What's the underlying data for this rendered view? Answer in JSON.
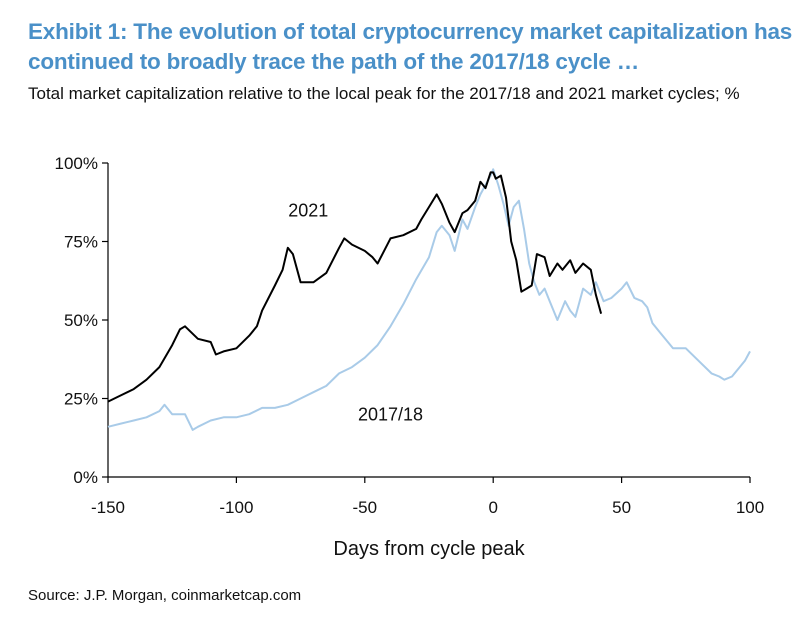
{
  "title": "Exhibit 1: The evolution of total cryptocurrency market capitalization has continued to broadly trace the path of the 2017/18 cycle …",
  "subtitle": "Total market capitalization relative to the local peak for the 2017/18 and 2021 market cycles; %",
  "source": "Source: J.P.  Morgan, coinmarketcap.com",
  "colors": {
    "title": "#4a90c8",
    "series_2021": "#000000",
    "series_2017_18": "#a9cbe8",
    "axis": "#000000"
  },
  "chart_data": {
    "type": "line",
    "xlabel": "Days from cycle peak",
    "ylabel": "",
    "xlim": [
      -150,
      100
    ],
    "ylim": [
      0,
      100
    ],
    "xticks": [
      -150,
      -100,
      -50,
      0,
      50,
      100
    ],
    "xtick_labels": [
      "-150",
      "-100",
      "-50",
      "0",
      "50",
      "100"
    ],
    "yticks": [
      0,
      25,
      50,
      75,
      100
    ],
    "ytick_labels": [
      "0%",
      "25%",
      "50%",
      "75%",
      "100%"
    ],
    "grid": false,
    "legend": "none",
    "annotations": [
      {
        "text": "2021",
        "x": -72,
        "y": 83
      },
      {
        "text": "2017/18",
        "x": -40,
        "y": 18
      }
    ],
    "series": [
      {
        "name": "2021",
        "x": [
          -150,
          -145,
          -140,
          -135,
          -130,
          -125,
          -122,
          -120,
          -115,
          -110,
          -108,
          -105,
          -100,
          -95,
          -92,
          -90,
          -85,
          -82,
          -80,
          -78,
          -75,
          -70,
          -65,
          -60,
          -58,
          -55,
          -50,
          -47,
          -45,
          -40,
          -35,
          -30,
          -28,
          -25,
          -22,
          -20,
          -17,
          -15,
          -12,
          -10,
          -7,
          -5,
          -3,
          -1,
          0,
          1,
          3,
          5,
          7,
          9,
          11,
          13,
          15,
          17,
          20,
          22,
          25,
          27,
          30,
          32,
          35,
          38,
          40,
          42
        ],
        "y": [
          24,
          26,
          28,
          31,
          35,
          42,
          47,
          48,
          44,
          43,
          39,
          40,
          41,
          45,
          48,
          53,
          61,
          66,
          73,
          71,
          62,
          62,
          65,
          73,
          76,
          74,
          72,
          70,
          68,
          76,
          77,
          79,
          82,
          86,
          90,
          87,
          81,
          78,
          84,
          85,
          88,
          94,
          92,
          97,
          97,
          95,
          96,
          89,
          75,
          69,
          59,
          60,
          61,
          71,
          70,
          64,
          68,
          66,
          69,
          65,
          68,
          66,
          58,
          52
        ]
      },
      {
        "name": "2017/18",
        "x": [
          -150,
          -145,
          -140,
          -135,
          -130,
          -128,
          -125,
          -120,
          -117,
          -115,
          -110,
          -105,
          -100,
          -95,
          -90,
          -85,
          -80,
          -75,
          -70,
          -65,
          -60,
          -55,
          -50,
          -45,
          -40,
          -35,
          -30,
          -25,
          -22,
          -20,
          -17,
          -15,
          -12,
          -10,
          -7,
          -5,
          -3,
          -1,
          0,
          2,
          4,
          6,
          8,
          10,
          12,
          14,
          16,
          18,
          20,
          22,
          25,
          28,
          30,
          32,
          35,
          38,
          40,
          43,
          46,
          50,
          52,
          55,
          58,
          60,
          62,
          65,
          70,
          75,
          80,
          85,
          88,
          90,
          93,
          96,
          98,
          100
        ],
        "y": [
          16,
          17,
          18,
          19,
          21,
          23,
          20,
          20,
          15,
          16,
          18,
          19,
          19,
          20,
          22,
          22,
          23,
          25,
          27,
          29,
          33,
          35,
          38,
          42,
          48,
          55,
          63,
          70,
          78,
          80,
          77,
          72,
          82,
          79,
          86,
          90,
          93,
          96,
          98,
          93,
          87,
          80,
          86,
          88,
          79,
          68,
          62,
          58,
          60,
          56,
          50,
          56,
          53,
          51,
          60,
          58,
          62,
          56,
          57,
          60,
          62,
          57,
          56,
          54,
          49,
          46,
          41,
          41,
          37,
          33,
          32,
          31,
          32,
          35,
          37,
          40
        ]
      }
    ]
  }
}
